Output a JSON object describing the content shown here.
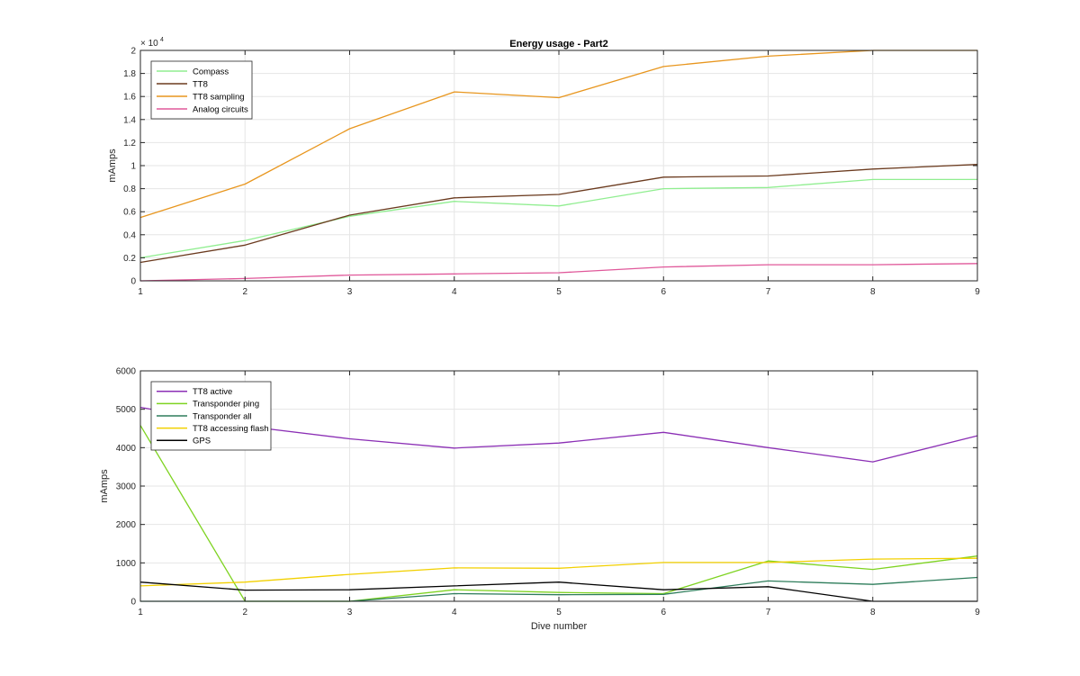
{
  "chart_data": [
    {
      "type": "line",
      "title": "Energy usage - Part2",
      "xlabel": "",
      "ylabel": "mAmps",
      "y_exponent_base": "× 10",
      "y_exponent_power": "4",
      "x": [
        1,
        2,
        3,
        4,
        5,
        6,
        7,
        8,
        9
      ],
      "xlim": [
        1,
        9
      ],
      "ylim": [
        0,
        2
      ],
      "xticks": [
        "1",
        "2",
        "3",
        "4",
        "5",
        "6",
        "7",
        "8",
        "9"
      ],
      "yticks": [
        "0",
        "0.2",
        "0.4",
        "0.6",
        "0.8",
        "1",
        "1.2",
        "1.4",
        "1.6",
        "1.8",
        "2"
      ],
      "grid": true,
      "legend_position": "top-left",
      "series": [
        {
          "name": "Compass",
          "color": "#90ee90",
          "values": [
            0.2,
            0.35,
            0.56,
            0.69,
            0.65,
            0.8,
            0.81,
            0.88,
            0.88
          ]
        },
        {
          "name": "TT8",
          "color": "#6b3b1f",
          "values": [
            0.16,
            0.31,
            0.57,
            0.72,
            0.75,
            0.9,
            0.91,
            0.97,
            1.01
          ]
        },
        {
          "name": "TT8 sampling",
          "color": "#e8961e",
          "values": [
            0.55,
            0.84,
            1.32,
            1.64,
            1.59,
            1.86,
            1.95,
            2.0,
            2.0
          ]
        },
        {
          "name": "Analog circuits",
          "color": "#e0589a",
          "values": [
            0.0,
            0.02,
            0.05,
            0.06,
            0.07,
            0.12,
            0.14,
            0.14,
            0.15
          ]
        }
      ]
    },
    {
      "type": "line",
      "title": "",
      "xlabel": "Dive number",
      "ylabel": "mAmps",
      "x": [
        1,
        2,
        3,
        4,
        5,
        6,
        7,
        8,
        9
      ],
      "xlim": [
        1,
        9
      ],
      "ylim": [
        0,
        6000
      ],
      "xticks": [
        "1",
        "2",
        "3",
        "4",
        "5",
        "6",
        "7",
        "8",
        "9"
      ],
      "yticks": [
        "0",
        "1000",
        "2000",
        "3000",
        "4000",
        "5000",
        "6000"
      ],
      "grid": true,
      "legend_position": "top-left",
      "series": [
        {
          "name": "TT8 active",
          "color": "#8b2fb5",
          "values": [
            5050,
            4560,
            4230,
            3990,
            4120,
            4400,
            4000,
            3630,
            4310
          ]
        },
        {
          "name": "Transponder ping",
          "color": "#7ed321",
          "values": [
            4580,
            0,
            0,
            300,
            230,
            200,
            1050,
            830,
            1180
          ]
        },
        {
          "name": "Transponder all",
          "color": "#2e7d5b",
          "values": [
            0,
            0,
            0,
            200,
            170,
            180,
            530,
            440,
            620
          ]
        },
        {
          "name": "TT8 accessing flash",
          "color": "#f2d000",
          "values": [
            400,
            500,
            700,
            870,
            860,
            1010,
            1010,
            1100,
            1120
          ]
        },
        {
          "name": "GPS",
          "color": "#000000",
          "values": [
            500,
            290,
            300,
            400,
            500,
            300,
            380,
            0,
            0
          ]
        }
      ]
    }
  ]
}
